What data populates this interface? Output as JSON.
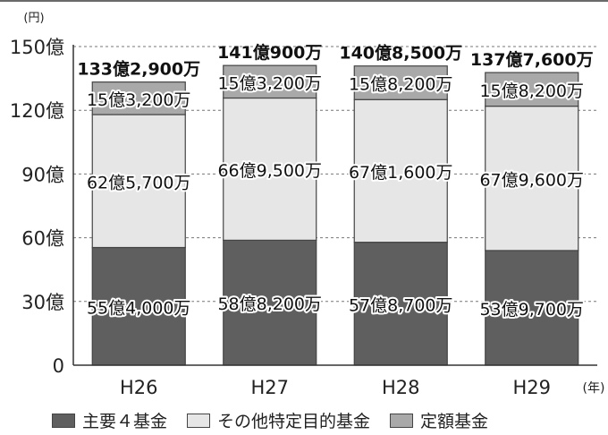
{
  "chart_data": {
    "type": "bar",
    "stacked": true,
    "y_unit": "(円)",
    "x_unit": "(年)",
    "ylim": [
      0,
      150
    ],
    "y_ticks": [
      {
        "value": 0,
        "label": "0"
      },
      {
        "value": 30,
        "label": "30億"
      },
      {
        "value": 60,
        "label": "60億"
      },
      {
        "value": 90,
        "label": "90億"
      },
      {
        "value": 120,
        "label": "120億"
      },
      {
        "value": 150,
        "label": "150億"
      }
    ],
    "categories": [
      "H26",
      "H27",
      "H28",
      "H29"
    ],
    "series": [
      {
        "name": "主要４基金",
        "color": "#5f5f5f",
        "values": [
          55.4,
          58.82,
          57.87,
          53.97
        ],
        "labels": [
          "55億4,000万",
          "58億8,200万",
          "57億8,700万",
          "53億9,700万"
        ]
      },
      {
        "name": "その他特定目的基金",
        "color": "#e6e6e6",
        "values": [
          62.57,
          66.95,
          67.16,
          67.96
        ],
        "labels": [
          "62億5,700万",
          "66億9,500万",
          "67億1,600万",
          "67億9,600万"
        ]
      },
      {
        "name": "定額基金",
        "color": "#a9a9a9",
        "values": [
          15.32,
          15.32,
          15.82,
          15.82
        ],
        "labels": [
          "15億3,200万",
          "15億3,200万",
          "15億8,200万",
          "15億8,200万"
        ]
      }
    ],
    "totals": [
      133.29,
      141.09,
      140.85,
      137.76
    ],
    "total_labels": [
      "133億2,900万",
      "141億900万",
      "140億8,500万",
      "137億7,600万"
    ],
    "grid": "dashed-horizontal",
    "legend_position": "bottom"
  }
}
